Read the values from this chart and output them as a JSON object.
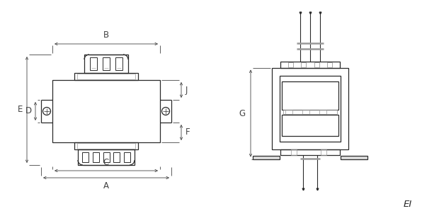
{
  "bg_color": "#ffffff",
  "line_color": "#2a2a2a",
  "dim_color": "#444444",
  "gray": "#999999",
  "label_A": "A",
  "label_B": "B",
  "label_C": "C",
  "label_D": "D",
  "label_E": "E",
  "label_F": "F",
  "label_J": "J",
  "label_G": "G",
  "label_EI": "EI",
  "font_size": 8.5
}
